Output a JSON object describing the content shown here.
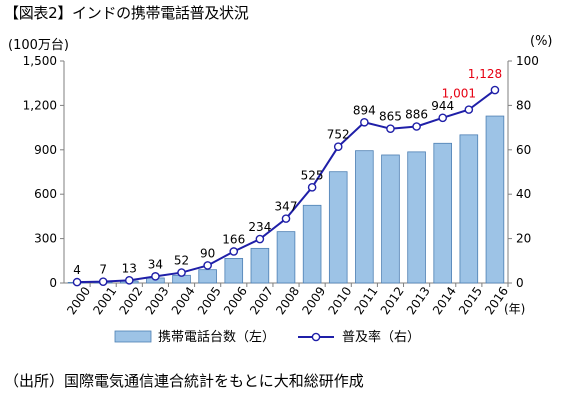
{
  "title": "【図表2】インドの携帯電話普及状況",
  "source": "（出所）国際電気通信連合統計をもとに大和総研作成",
  "chart_data": {
    "type": "bar",
    "title": "【図表2】インドの携帯電話普及状況",
    "categories": [
      "2000",
      "2001",
      "2002",
      "2003",
      "2004",
      "2005",
      "2006",
      "2007",
      "2008",
      "2009",
      "2010",
      "2011",
      "2012",
      "2013",
      "2014",
      "2015",
      "2016"
    ],
    "x_suffix": "(年)",
    "left_axis": {
      "unit_label": "(100万台)",
      "ylim": [
        0,
        1500
      ],
      "ticks": [
        "0",
        "300",
        "600",
        "900",
        "1,200",
        "1,500"
      ],
      "tick_values": [
        0,
        300,
        600,
        900,
        1200,
        1500
      ]
    },
    "right_axis": {
      "unit_label": "(%)",
      "ylim": [
        0,
        100
      ],
      "ticks": [
        "0",
        "20",
        "40",
        "60",
        "80",
        "100"
      ],
      "tick_values": [
        0,
        20,
        40,
        60,
        80,
        100
      ]
    },
    "series": [
      {
        "name": "携帯電話台数（左）",
        "type": "bar",
        "axis": "left",
        "color": "#9dc3e6",
        "values": [
          4,
          7,
          13,
          34,
          52,
          90,
          166,
          234,
          347,
          525,
          752,
          894,
          865,
          886,
          944,
          1001,
          1128
        ],
        "labels": [
          "4",
          "7",
          "13",
          "34",
          "52",
          "90",
          "166",
          "234",
          "347",
          "525",
          "752",
          "894",
          "865",
          "886",
          "944",
          "1,001",
          "1,128"
        ],
        "highlight_color": "#e60012",
        "highlight_from_index": 15
      },
      {
        "name": "普及率（右）",
        "type": "line",
        "axis": "right",
        "color": "#1f1fa8",
        "values": [
          0.4,
          0.6,
          1.2,
          3.0,
          4.7,
          7.9,
          14.2,
          19.8,
          29.0,
          43.1,
          61.4,
          72.4,
          69.5,
          70.5,
          74.4,
          78.1,
          86.9
        ]
      }
    ],
    "grid": false,
    "legend": "bottom"
  }
}
